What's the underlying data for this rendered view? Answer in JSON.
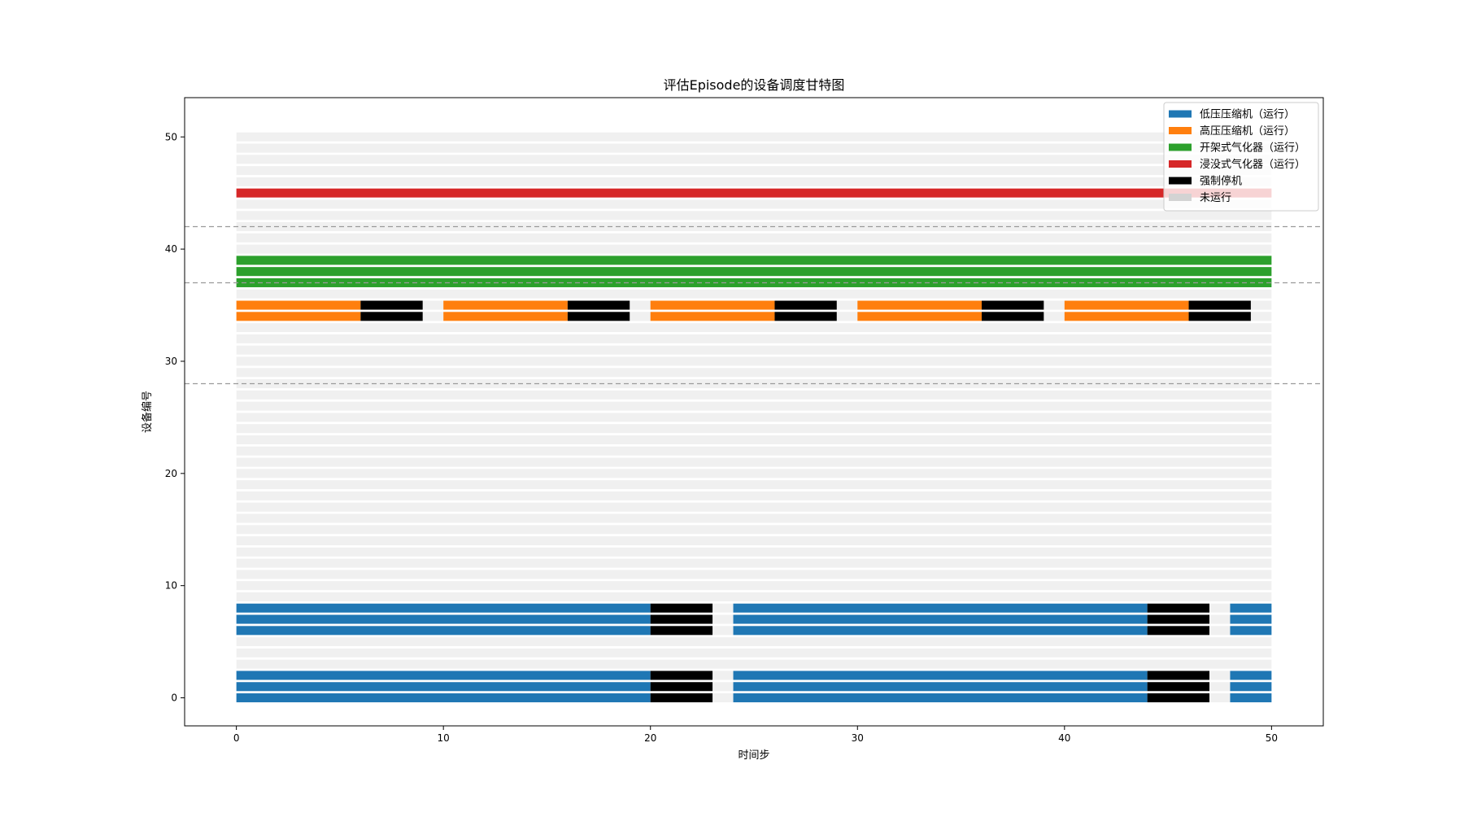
{
  "chart_data": {
    "type": "gantt",
    "title": "评估Episode的设备调度甘特图",
    "xlabel": "时间步",
    "ylabel": "设备编号",
    "xlim": [
      -2.5,
      52.5
    ],
    "ylim": [
      -2.5,
      53.5
    ],
    "xticks": [
      0,
      10,
      20,
      30,
      40,
      50
    ],
    "yticks": [
      0,
      10,
      20,
      30,
      40,
      50
    ],
    "grid": false,
    "legend_position": "top-right",
    "colors": {
      "低压压缩机": "#1f77b4",
      "高压压缩机": "#ff7f0e",
      "开架式气化器": "#2ca02c",
      "浸没式气化器": "#d62728",
      "强制停机": "#000000",
      "未运行": "#d3d3d3"
    },
    "legend": [
      {
        "label": "低压压缩机（运行）",
        "state": "低压压缩机"
      },
      {
        "label": "高压压缩机（运行）",
        "state": "高压压缩机"
      },
      {
        "label": "开架式气化器（运行）",
        "state": "开架式气化器"
      },
      {
        "label": "浸没式气化器（运行）",
        "state": "浸没式气化器"
      },
      {
        "label": "强制停机",
        "state": "强制停机"
      },
      {
        "label": "未运行",
        "state": "未运行"
      }
    ],
    "group_separators_y": [
      28,
      37,
      42
    ],
    "time_range": [
      0,
      50
    ],
    "idle_devices": [
      3,
      4,
      5,
      9,
      10,
      11,
      12,
      13,
      14,
      15,
      16,
      17,
      18,
      19,
      20,
      21,
      22,
      23,
      24,
      25,
      26,
      27,
      28,
      29,
      30,
      31,
      32,
      33,
      36,
      40,
      41,
      42,
      43,
      44,
      46,
      47,
      48,
      49,
      50
    ],
    "devices": [
      {
        "id": 0,
        "segments": [
          {
            "start": 0,
            "end": 20,
            "state": "低压压缩机"
          },
          {
            "start": 20,
            "end": 23,
            "state": "强制停机"
          },
          {
            "start": 23,
            "end": 24,
            "state": "未运行"
          },
          {
            "start": 24,
            "end": 44,
            "state": "低压压缩机"
          },
          {
            "start": 44,
            "end": 47,
            "state": "强制停机"
          },
          {
            "start": 47,
            "end": 48,
            "state": "未运行"
          },
          {
            "start": 48,
            "end": 50,
            "state": "低压压缩机"
          }
        ]
      },
      {
        "id": 1,
        "segments": [
          {
            "start": 0,
            "end": 20,
            "state": "低压压缩机"
          },
          {
            "start": 20,
            "end": 23,
            "state": "强制停机"
          },
          {
            "start": 23,
            "end": 24,
            "state": "未运行"
          },
          {
            "start": 24,
            "end": 44,
            "state": "低压压缩机"
          },
          {
            "start": 44,
            "end": 47,
            "state": "强制停机"
          },
          {
            "start": 47,
            "end": 48,
            "state": "未运行"
          },
          {
            "start": 48,
            "end": 50,
            "state": "低压压缩机"
          }
        ]
      },
      {
        "id": 2,
        "segments": [
          {
            "start": 0,
            "end": 20,
            "state": "低压压缩机"
          },
          {
            "start": 20,
            "end": 23,
            "state": "强制停机"
          },
          {
            "start": 23,
            "end": 24,
            "state": "未运行"
          },
          {
            "start": 24,
            "end": 44,
            "state": "低压压缩机"
          },
          {
            "start": 44,
            "end": 47,
            "state": "强制停机"
          },
          {
            "start": 47,
            "end": 48,
            "state": "未运行"
          },
          {
            "start": 48,
            "end": 50,
            "state": "低压压缩机"
          }
        ]
      },
      {
        "id": 6,
        "segments": [
          {
            "start": 0,
            "end": 20,
            "state": "低压压缩机"
          },
          {
            "start": 20,
            "end": 23,
            "state": "强制停机"
          },
          {
            "start": 23,
            "end": 24,
            "state": "未运行"
          },
          {
            "start": 24,
            "end": 44,
            "state": "低压压缩机"
          },
          {
            "start": 44,
            "end": 47,
            "state": "强制停机"
          },
          {
            "start": 47,
            "end": 48,
            "state": "未运行"
          },
          {
            "start": 48,
            "end": 50,
            "state": "低压压缩机"
          }
        ]
      },
      {
        "id": 7,
        "segments": [
          {
            "start": 0,
            "end": 20,
            "state": "低压压缩机"
          },
          {
            "start": 20,
            "end": 23,
            "state": "强制停机"
          },
          {
            "start": 23,
            "end": 24,
            "state": "未运行"
          },
          {
            "start": 24,
            "end": 44,
            "state": "低压压缩机"
          },
          {
            "start": 44,
            "end": 47,
            "state": "强制停机"
          },
          {
            "start": 47,
            "end": 48,
            "state": "未运行"
          },
          {
            "start": 48,
            "end": 50,
            "state": "低压压缩机"
          }
        ]
      },
      {
        "id": 8,
        "segments": [
          {
            "start": 0,
            "end": 20,
            "state": "低压压缩机"
          },
          {
            "start": 20,
            "end": 23,
            "state": "强制停机"
          },
          {
            "start": 23,
            "end": 24,
            "state": "未运行"
          },
          {
            "start": 24,
            "end": 44,
            "state": "低压压缩机"
          },
          {
            "start": 44,
            "end": 47,
            "state": "强制停机"
          },
          {
            "start": 47,
            "end": 48,
            "state": "未运行"
          },
          {
            "start": 48,
            "end": 50,
            "state": "低压压缩机"
          }
        ]
      },
      {
        "id": 34,
        "segments": [
          {
            "start": 0,
            "end": 6,
            "state": "高压压缩机"
          },
          {
            "start": 6,
            "end": 9,
            "state": "强制停机"
          },
          {
            "start": 9,
            "end": 10,
            "state": "未运行"
          },
          {
            "start": 10,
            "end": 16,
            "state": "高压压缩机"
          },
          {
            "start": 16,
            "end": 19,
            "state": "强制停机"
          },
          {
            "start": 19,
            "end": 20,
            "state": "未运行"
          },
          {
            "start": 20,
            "end": 26,
            "state": "高压压缩机"
          },
          {
            "start": 26,
            "end": 29,
            "state": "强制停机"
          },
          {
            "start": 29,
            "end": 30,
            "state": "未运行"
          },
          {
            "start": 30,
            "end": 36,
            "state": "高压压缩机"
          },
          {
            "start": 36,
            "end": 39,
            "state": "强制停机"
          },
          {
            "start": 39,
            "end": 40,
            "state": "未运行"
          },
          {
            "start": 40,
            "end": 46,
            "state": "高压压缩机"
          },
          {
            "start": 46,
            "end": 49,
            "state": "强制停机"
          },
          {
            "start": 49,
            "end": 50,
            "state": "未运行"
          }
        ]
      },
      {
        "id": 35,
        "segments": [
          {
            "start": 0,
            "end": 6,
            "state": "高压压缩机"
          },
          {
            "start": 6,
            "end": 9,
            "state": "强制停机"
          },
          {
            "start": 9,
            "end": 10,
            "state": "未运行"
          },
          {
            "start": 10,
            "end": 16,
            "state": "高压压缩机"
          },
          {
            "start": 16,
            "end": 19,
            "state": "强制停机"
          },
          {
            "start": 19,
            "end": 20,
            "state": "未运行"
          },
          {
            "start": 20,
            "end": 26,
            "state": "高压压缩机"
          },
          {
            "start": 26,
            "end": 29,
            "state": "强制停机"
          },
          {
            "start": 29,
            "end": 30,
            "state": "未运行"
          },
          {
            "start": 30,
            "end": 36,
            "state": "高压压缩机"
          },
          {
            "start": 36,
            "end": 39,
            "state": "强制停机"
          },
          {
            "start": 39,
            "end": 40,
            "state": "未运行"
          },
          {
            "start": 40,
            "end": 46,
            "state": "高压压缩机"
          },
          {
            "start": 46,
            "end": 49,
            "state": "强制停机"
          },
          {
            "start": 49,
            "end": 50,
            "state": "未运行"
          }
        ]
      },
      {
        "id": 37,
        "segments": [
          {
            "start": 0,
            "end": 50,
            "state": "开架式气化器"
          }
        ]
      },
      {
        "id": 38,
        "segments": [
          {
            "start": 0,
            "end": 50,
            "state": "开架式气化器"
          }
        ]
      },
      {
        "id": 39,
        "segments": [
          {
            "start": 0,
            "end": 50,
            "state": "开架式气化器"
          }
        ]
      },
      {
        "id": 45,
        "segments": [
          {
            "start": 0,
            "end": 50,
            "state": "浸没式气化器"
          }
        ]
      }
    ]
  }
}
